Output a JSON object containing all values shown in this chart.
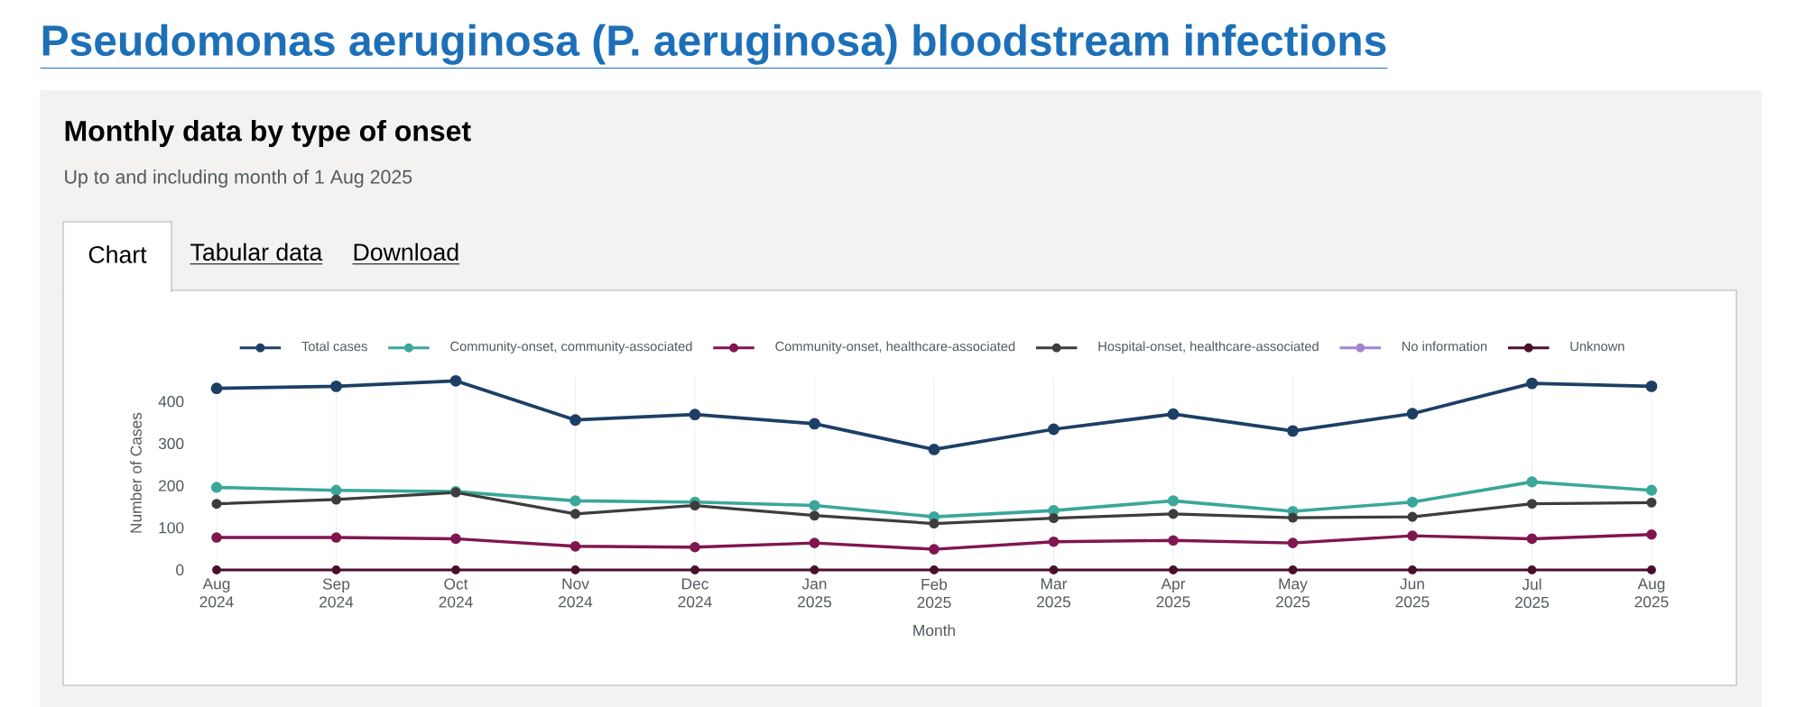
{
  "chart_data": {
    "type": "line",
    "title": "Pseudomonas aeruginosa (P. aeruginosa) bloodstream infections",
    "subtitle": "Monthly data by type of onset",
    "annotations": [
      "Up to and including month of 1 Aug 2025",
      "Chart",
      "Tabular data",
      "Download"
    ],
    "xlabel": "Month",
    "ylabel": "Number of Cases",
    "categories": [
      "Aug 2024",
      "Sep 2024",
      "Oct 2024",
      "Nov 2024",
      "Dec 2024",
      "Jan 2025",
      "Feb 2025",
      "Mar 2025",
      "Apr 2025",
      "May 2025",
      "Jun 2025",
      "Jul 2025",
      "Aug 2025"
    ],
    "series": [
      {
        "name": "Total cases",
        "color": "#1d3f66",
        "values": [
          431,
          436,
          449,
          356,
          369,
          347,
          286,
          334,
          370,
          330,
          371,
          443,
          436
        ]
      },
      {
        "name": "Community-onset, community-associated",
        "color": "#3aa79a",
        "values": [
          196,
          189,
          186,
          164,
          161,
          153,
          126,
          141,
          164,
          139,
          161,
          209,
          189
        ]
      },
      {
        "name": "Community-onset, healthcare-associated",
        "color": "#801650",
        "values": [
          77,
          77,
          74,
          56,
          54,
          64,
          49,
          67,
          70,
          64,
          81,
          74,
          84
        ]
      },
      {
        "name": "Hospital-onset, healthcare-associated",
        "color": "#3d3d3d",
        "values": [
          157,
          167,
          184,
          133,
          153,
          129,
          110,
          123,
          133,
          124,
          126,
          157,
          160
        ]
      },
      {
        "name": "No information",
        "color": "#a285d1",
        "values": [
          null,
          null,
          null,
          null,
          null,
          null,
          null,
          null,
          null,
          null,
          null,
          null,
          null
        ]
      },
      {
        "name": "Unknown",
        "color": "#4b0f2e",
        "values": [
          0,
          0,
          0,
          0,
          0,
          0,
          0,
          0,
          0,
          0,
          0,
          0,
          0
        ]
      }
    ],
    "ylim": [
      0,
      460
    ],
    "yticks": [
      0,
      100,
      200,
      300,
      400
    ],
    "grid": "x",
    "legend": "top",
    "marker": "circle",
    "line_style": "solid"
  }
}
